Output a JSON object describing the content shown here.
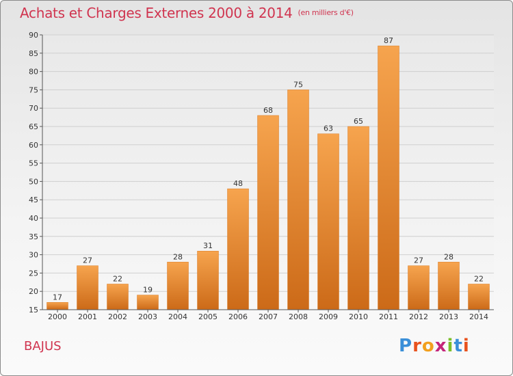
{
  "header": {
    "title": "Achats et Charges Externes 2000 à 2014",
    "unit": "(en milliers d'€)"
  },
  "place": "BAJUS",
  "logo": {
    "text": "Proxiti",
    "letters": [
      "P",
      "r",
      "o",
      "x",
      "i",
      "t",
      "i"
    ]
  },
  "colors": {
    "bar_light": "#f6a44e",
    "bar_dark": "#cc6a18",
    "title": "#d0344f",
    "grid": "#cfcfcf"
  },
  "chart_data": {
    "type": "bar",
    "title": "Achats et Charges Externes 2000 à 2014",
    "subtitle": "(en milliers d'€)",
    "categories": [
      "2000",
      "2001",
      "2002",
      "2003",
      "2004",
      "2005",
      "2006",
      "2007",
      "2008",
      "2009",
      "2010",
      "2011",
      "2012",
      "2013",
      "2014"
    ],
    "values": [
      17,
      27,
      22,
      19,
      28,
      31,
      48,
      68,
      75,
      63,
      65,
      87,
      27,
      28,
      22
    ],
    "ylim": [
      15,
      90
    ],
    "yticks": [
      15,
      20,
      25,
      30,
      35,
      40,
      45,
      50,
      55,
      60,
      65,
      70,
      75,
      80,
      85,
      90
    ],
    "grid": true,
    "legend": "none"
  }
}
